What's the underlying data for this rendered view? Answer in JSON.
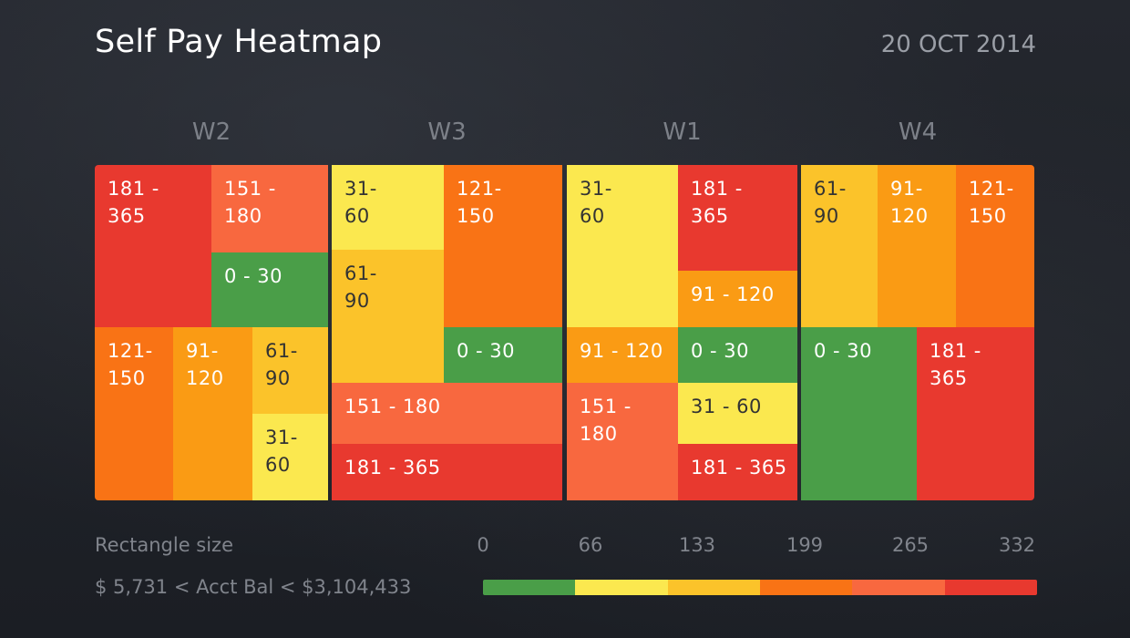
{
  "title": "Self Pay Heatmap",
  "date": "20 OCT 2014",
  "chart_data": {
    "type": "treemap",
    "groups": [
      {
        "name": "W2",
        "tiles": [
          {
            "label": "181 -\n365",
            "range": "181-365"
          },
          {
            "label": "151 -\n180",
            "range": "151-180"
          },
          {
            "label": "0 - 30",
            "range": "0-30"
          },
          {
            "label": "121-\n150",
            "range": "121-150"
          },
          {
            "label": "91-\n120",
            "range": "91-120"
          },
          {
            "label": "61-\n90",
            "range": "61-90"
          },
          {
            "label": "31-\n60",
            "range": "31-60"
          }
        ]
      },
      {
        "name": "W3",
        "tiles": [
          {
            "label": "31-\n60",
            "range": "31-60"
          },
          {
            "label": "121-\n150",
            "range": "121-150"
          },
          {
            "label": "61-\n90",
            "range": "61-90"
          },
          {
            "label": "0 - 30",
            "range": "0-30"
          },
          {
            "label": "151 - 180",
            "range": "151-180"
          },
          {
            "label": "181 - 365",
            "range": "181-365"
          }
        ]
      },
      {
        "name": "W1",
        "tiles": [
          {
            "label": "31-\n60",
            "range": "31-60"
          },
          {
            "label": "181 -\n365",
            "range": "181-365"
          },
          {
            "label": "91 - 120",
            "range": "91-120"
          },
          {
            "label": "91 - 120",
            "range": "91-120"
          },
          {
            "label": "0 - 30",
            "range": "0-30"
          },
          {
            "label": "151 -\n180",
            "range": "151-180"
          },
          {
            "label": "31 - 60",
            "range": "31-60"
          },
          {
            "label": "181 - 365",
            "range": "181-365"
          }
        ]
      },
      {
        "name": "W4",
        "tiles": [
          {
            "label": "61-\n90",
            "range": "61-90"
          },
          {
            "label": "91-\n120",
            "range": "91-120"
          },
          {
            "label": "121-\n150",
            "range": "121-150"
          },
          {
            "label": "0 - 30",
            "range": "0-30"
          },
          {
            "label": "181 -\n365",
            "range": "181-365"
          }
        ]
      }
    ],
    "range_colors": {
      "0-30": "#4a9e48",
      "31-60": "#fbe84f",
      "61-90": "#fbc32a",
      "91-120": "#fa9b14",
      "121-150": "#f97315",
      "151-180": "#f8683f",
      "181-365": "#e8392f"
    },
    "legend": {
      "size_label": "Rectangle size",
      "size_range": "$ 5,731 < Acct Bal < $3,104,433",
      "ticks": [
        "0",
        "66",
        "133",
        "199",
        "265",
        "332"
      ],
      "colors": [
        "#4a9e48",
        "#fbe84f",
        "#fbc32a",
        "#f97315",
        "#f8683f",
        "#e8392f"
      ]
    }
  }
}
